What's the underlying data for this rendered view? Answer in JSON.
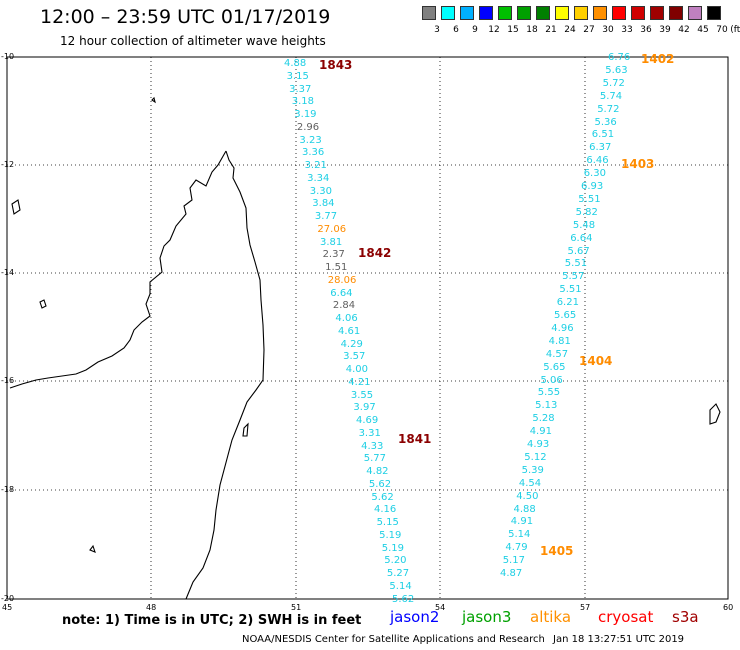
{
  "header": {
    "title": "12:00 – 23:59 UTC 01/17/2019",
    "subtitle": "12 hour collection of altimeter wave heights"
  },
  "legend": {
    "unit": "(ft)",
    "items": [
      {
        "label": "3",
        "color": "#808080"
      },
      {
        "label": "6",
        "color": "#00ffff"
      },
      {
        "label": "9",
        "color": "#00b0ff"
      },
      {
        "label": "12",
        "color": "#0000ff"
      },
      {
        "label": "15",
        "color": "#00c000"
      },
      {
        "label": "18",
        "color": "#00a000"
      },
      {
        "label": "21",
        "color": "#008000"
      },
      {
        "label": "24",
        "color": "#ffff00"
      },
      {
        "label": "27",
        "color": "#ffd000"
      },
      {
        "label": "30",
        "color": "#ff9000"
      },
      {
        "label": "33",
        "color": "#ff0000"
      },
      {
        "label": "36",
        "color": "#d00000"
      },
      {
        "label": "39",
        "color": "#a00000"
      },
      {
        "label": "42",
        "color": "#800000"
      },
      {
        "label": "45",
        "color": "#c080c0"
      },
      {
        "label": "70",
        "color": "#000000"
      }
    ]
  },
  "axes": {
    "lon_labels": [
      "45",
      "48",
      "51",
      "54",
      "57",
      "60"
    ],
    "lat_labels": [
      "-10",
      "-12",
      "-14",
      "-16",
      "-18",
      "-20"
    ]
  },
  "colors": {
    "cyan": "#1ecfe4",
    "gray": "#606060",
    "orange": "#ff8c00",
    "darkred": "#8b0000"
  },
  "tracks": {
    "west": [
      {
        "v": "4.88",
        "c": "cyan"
      },
      {
        "v": "3.15",
        "c": "cyan"
      },
      {
        "v": "3.37",
        "c": "cyan"
      },
      {
        "v": "3.18",
        "c": "cyan"
      },
      {
        "v": "3.19",
        "c": "cyan"
      },
      {
        "v": "2.96",
        "c": "gray"
      },
      {
        "v": "3.23",
        "c": "cyan"
      },
      {
        "v": "3.36",
        "c": "cyan"
      },
      {
        "v": "3.21",
        "c": "cyan"
      },
      {
        "v": "3.34",
        "c": "cyan"
      },
      {
        "v": "3.30",
        "c": "cyan"
      },
      {
        "v": "3.84",
        "c": "cyan"
      },
      {
        "v": "3.77",
        "c": "cyan"
      },
      {
        "v": "27.06",
        "c": "orange"
      },
      {
        "v": "3.81",
        "c": "cyan"
      },
      {
        "v": "2.37",
        "c": "gray"
      },
      {
        "v": "1.51",
        "c": "gray"
      },
      {
        "v": "28.06",
        "c": "orange"
      },
      {
        "v": "6.64",
        "c": "cyan"
      },
      {
        "v": "2.84",
        "c": "gray"
      },
      {
        "v": "4.06",
        "c": "cyan"
      },
      {
        "v": "4.61",
        "c": "cyan"
      },
      {
        "v": "4.29",
        "c": "cyan"
      },
      {
        "v": "3.57",
        "c": "cyan"
      },
      {
        "v": "4.00",
        "c": "cyan"
      },
      {
        "v": "4.21",
        "c": "cyan"
      },
      {
        "v": "3.55",
        "c": "cyan"
      },
      {
        "v": "3.97",
        "c": "cyan"
      },
      {
        "v": "4.69",
        "c": "cyan"
      },
      {
        "v": "3.31",
        "c": "cyan"
      },
      {
        "v": "4.33",
        "c": "cyan"
      },
      {
        "v": "5.77",
        "c": "cyan"
      },
      {
        "v": "4.82",
        "c": "cyan"
      },
      {
        "v": "5.62",
        "c": "cyan"
      },
      {
        "v": "5.62",
        "c": "cyan"
      },
      {
        "v": "4.16",
        "c": "cyan"
      },
      {
        "v": "5.15",
        "c": "cyan"
      },
      {
        "v": "5.19",
        "c": "cyan"
      },
      {
        "v": "5.19",
        "c": "cyan"
      },
      {
        "v": "5.20",
        "c": "cyan"
      },
      {
        "v": "5.27",
        "c": "cyan"
      },
      {
        "v": "5.14",
        "c": "cyan"
      },
      {
        "v": "5.62",
        "c": "cyan"
      }
    ],
    "east": [
      {
        "v": "6.76",
        "c": "cyan"
      },
      {
        "v": "5.63",
        "c": "cyan"
      },
      {
        "v": "5.72",
        "c": "cyan"
      },
      {
        "v": "5.74",
        "c": "cyan"
      },
      {
        "v": "5.72",
        "c": "cyan"
      },
      {
        "v": "5.36",
        "c": "cyan"
      },
      {
        "v": "6.51",
        "c": "cyan"
      },
      {
        "v": "6.37",
        "c": "cyan"
      },
      {
        "v": "6.46",
        "c": "cyan"
      },
      {
        "v": "6.30",
        "c": "cyan"
      },
      {
        "v": "6.93",
        "c": "cyan"
      },
      {
        "v": "5.51",
        "c": "cyan"
      },
      {
        "v": "5.82",
        "c": "cyan"
      },
      {
        "v": "5.48",
        "c": "cyan"
      },
      {
        "v": "6.64",
        "c": "cyan"
      },
      {
        "v": "5.67",
        "c": "cyan"
      },
      {
        "v": "5.51",
        "c": "cyan"
      },
      {
        "v": "5.57",
        "c": "cyan"
      },
      {
        "v": "5.51",
        "c": "cyan"
      },
      {
        "v": "6.21",
        "c": "cyan"
      },
      {
        "v": "5.65",
        "c": "cyan"
      },
      {
        "v": "4.96",
        "c": "cyan"
      },
      {
        "v": "4.81",
        "c": "cyan"
      },
      {
        "v": "4.57",
        "c": "cyan"
      },
      {
        "v": "5.65",
        "c": "cyan"
      },
      {
        "v": "5.06",
        "c": "cyan"
      },
      {
        "v": "5.55",
        "c": "cyan"
      },
      {
        "v": "5.13",
        "c": "cyan"
      },
      {
        "v": "5.28",
        "c": "cyan"
      },
      {
        "v": "4.91",
        "c": "cyan"
      },
      {
        "v": "4.93",
        "c": "cyan"
      },
      {
        "v": "5.12",
        "c": "cyan"
      },
      {
        "v": "5.39",
        "c": "cyan"
      },
      {
        "v": "4.54",
        "c": "cyan"
      },
      {
        "v": "4.50",
        "c": "cyan"
      },
      {
        "v": "4.88",
        "c": "cyan"
      },
      {
        "v": "4.91",
        "c": "cyan"
      },
      {
        "v": "5.14",
        "c": "cyan"
      },
      {
        "v": "4.79",
        "c": "cyan"
      },
      {
        "v": "5.17",
        "c": "cyan"
      },
      {
        "v": "4.87",
        "c": "cyan"
      }
    ]
  },
  "pass_labels": [
    {
      "text": "1843",
      "c": "darkred"
    },
    {
      "text": "1842",
      "c": "darkred"
    },
    {
      "text": "1841",
      "c": "darkred"
    },
    {
      "text": "1402",
      "c": "orange"
    },
    {
      "text": "1403",
      "c": "orange"
    },
    {
      "text": "1404",
      "c": "orange"
    },
    {
      "text": "1405",
      "c": "orange"
    }
  ],
  "footer": {
    "note": "note:  1) Time is in UTC;  2) SWH is in feet",
    "satellites": [
      {
        "name": "jason2",
        "color": "#0000ff"
      },
      {
        "name": "jason3",
        "color": "#00a000"
      },
      {
        "name": "altika",
        "color": "#ff9000"
      },
      {
        "name": "cryosat",
        "color": "#ff0000"
      },
      {
        "name": "s3a",
        "color": "#a00000"
      }
    ],
    "center": "NOAA/NESDIS Center for Satellite Applications and Research",
    "timestamp": "Jan 18 13:27:51 UTC 2019"
  }
}
